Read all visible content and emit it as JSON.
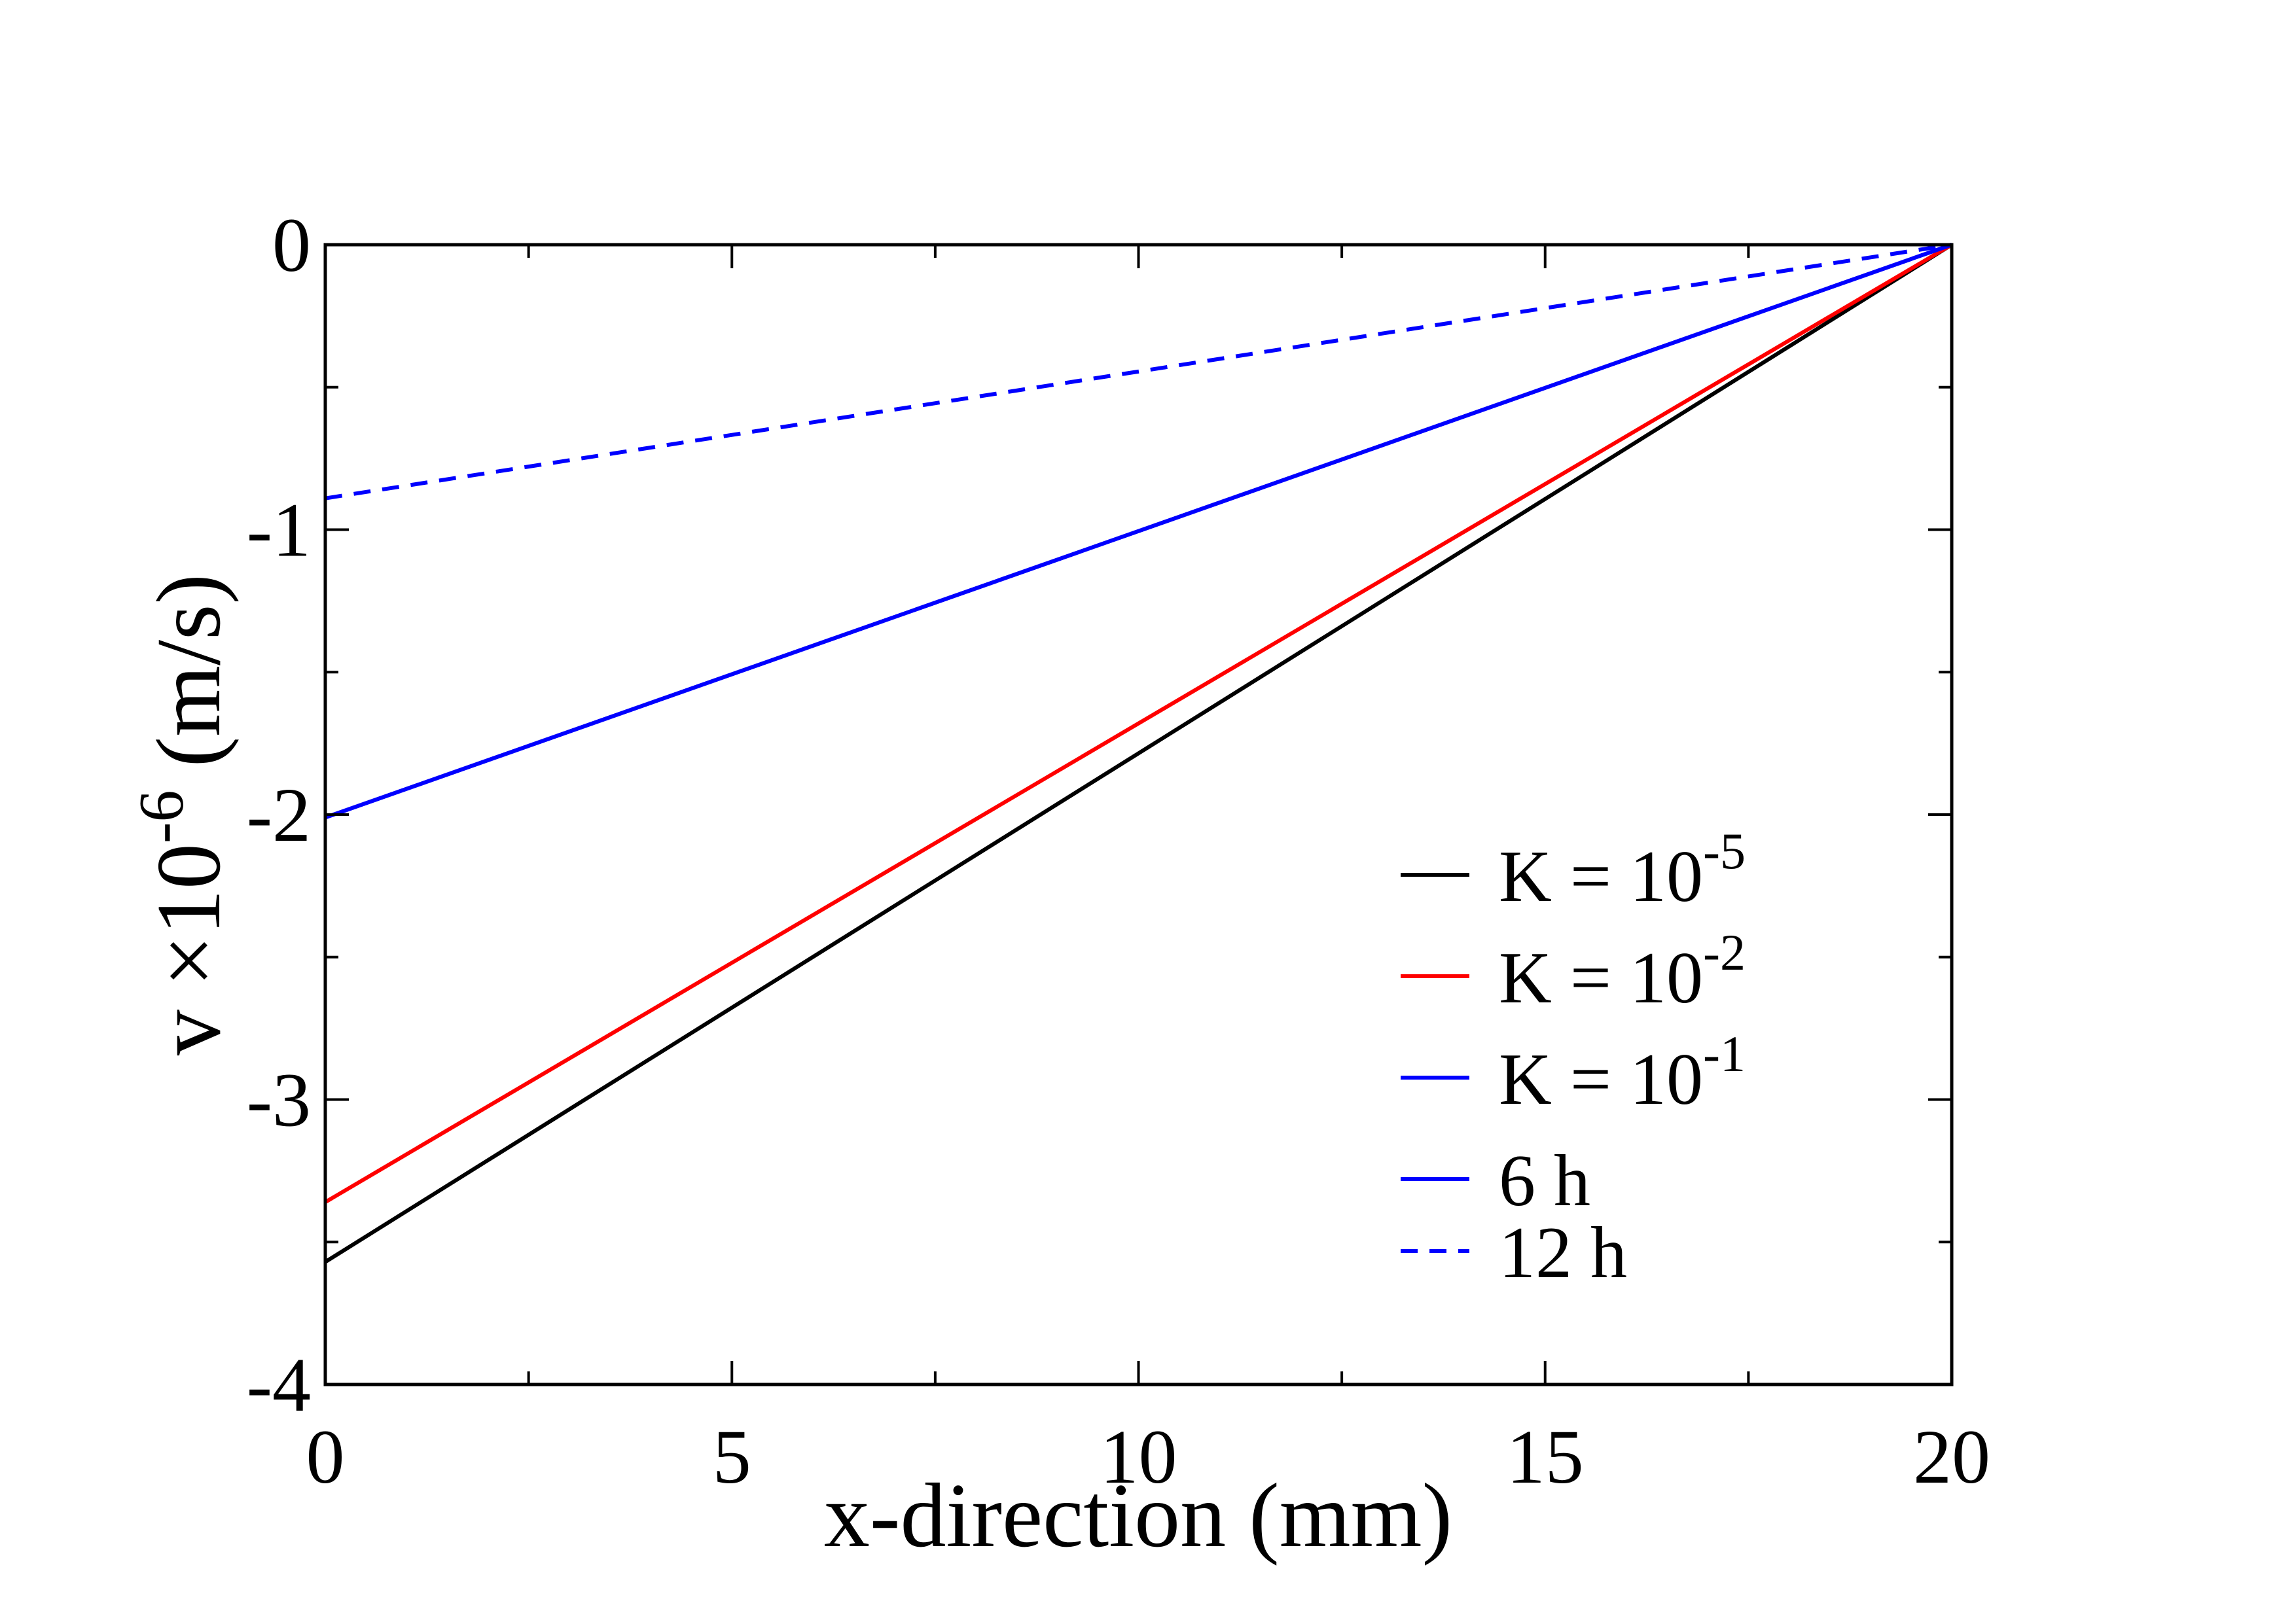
{
  "chart_data": {
    "type": "line",
    "title": "",
    "xlabel": "x-direction (mm)",
    "ylabel_main": "v ×10",
    "ylabel_exp": "-6",
    "ylabel_unit": " (m/s)",
    "xlim": [
      0,
      20
    ],
    "ylim": [
      -4,
      0
    ],
    "x_major_ticks": [
      0,
      5,
      10,
      15,
      20
    ],
    "x_tick_labels": [
      "0",
      "5",
      "10",
      "15",
      "20"
    ],
    "x_minor_ticks": [
      2.5,
      7.5,
      12.5,
      17.5
    ],
    "y_major_ticks": [
      -4,
      -3,
      -2,
      -1,
      0
    ],
    "y_tick_labels": [
      "-4",
      "-3",
      "-2",
      "-1",
      "0"
    ],
    "y_minor_ticks": [
      -3.5,
      -2.5,
      -1.5,
      -0.5
    ],
    "grid": false,
    "legend_position": "lower-right",
    "series": [
      {
        "name": "K = 10",
        "exp": "-5",
        "color": "#000000",
        "dash": "solid",
        "x": [
          0,
          20
        ],
        "y": [
          -3.57,
          0
        ]
      },
      {
        "name": "K = 10",
        "exp": "-2",
        "color": "#ff0000",
        "dash": "solid",
        "x": [
          0,
          20
        ],
        "y": [
          -3.36,
          0
        ]
      },
      {
        "name": "K = 10",
        "exp": "-1",
        "color": "#0000ff",
        "dash": "solid",
        "x": [
          0,
          20
        ],
        "y": [
          -2.01,
          0
        ]
      },
      {
        "name": "6 h",
        "exp": "",
        "color": "#0000ff",
        "dash": "solid",
        "x": [
          0,
          20
        ],
        "y": [
          -2.01,
          0
        ]
      },
      {
        "name": "12 h",
        "exp": "",
        "color": "#0000ff",
        "dash": "dashed",
        "x": [
          0,
          20
        ],
        "y": [
          -0.89,
          0
        ]
      }
    ]
  }
}
